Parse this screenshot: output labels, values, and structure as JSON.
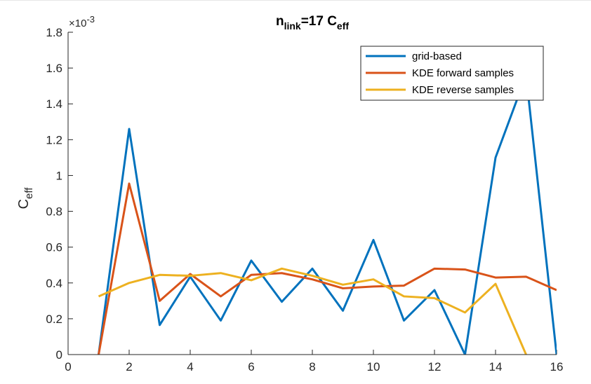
{
  "chart_data": {
    "type": "line",
    "title": {
      "base": "n",
      "sub": "link",
      "mid": "=17 C",
      "sub2": "eff"
    },
    "ylabel": {
      "base": "C",
      "sub": "eff"
    },
    "xlabel": "",
    "y_exponent": {
      "prefix": "×10",
      "power": "-3"
    },
    "xlim": [
      0,
      16
    ],
    "ylim": [
      0,
      1.8
    ],
    "xticks": [
      0,
      2,
      4,
      6,
      8,
      10,
      12,
      14,
      16
    ],
    "yticks": [
      0,
      0.2,
      0.4,
      0.6,
      0.8,
      1,
      1.2,
      1.4,
      1.6,
      1.8
    ],
    "grid": false,
    "legend_position": "top-right",
    "x": [
      1,
      2,
      3,
      4,
      5,
      6,
      7,
      8,
      9,
      10,
      11,
      12,
      13,
      14,
      15,
      16
    ],
    "series": [
      {
        "name": "grid-based",
        "color": "#0072BD",
        "values": [
          0,
          1.26,
          0.165,
          0.435,
          0.19,
          0.525,
          0.295,
          0.48,
          0.245,
          0.64,
          0.19,
          0.36,
          0,
          1.1,
          1.56,
          0
        ]
      },
      {
        "name": "KDE forward samples",
        "color": "#D95319",
        "values": [
          0,
          0.955,
          0.3,
          0.45,
          0.325,
          0.445,
          0.455,
          0.42,
          0.37,
          0.38,
          0.385,
          0.48,
          0.475,
          0.43,
          0.435,
          0.36
        ]
      },
      {
        "name": "KDE reverse samples",
        "color": "#EDB120",
        "values": [
          0.325,
          0.4,
          0.445,
          0.44,
          0.455,
          0.415,
          0.48,
          0.44,
          0.39,
          0.42,
          0.325,
          0.315,
          0.235,
          0.395,
          0,
          null
        ]
      }
    ]
  }
}
